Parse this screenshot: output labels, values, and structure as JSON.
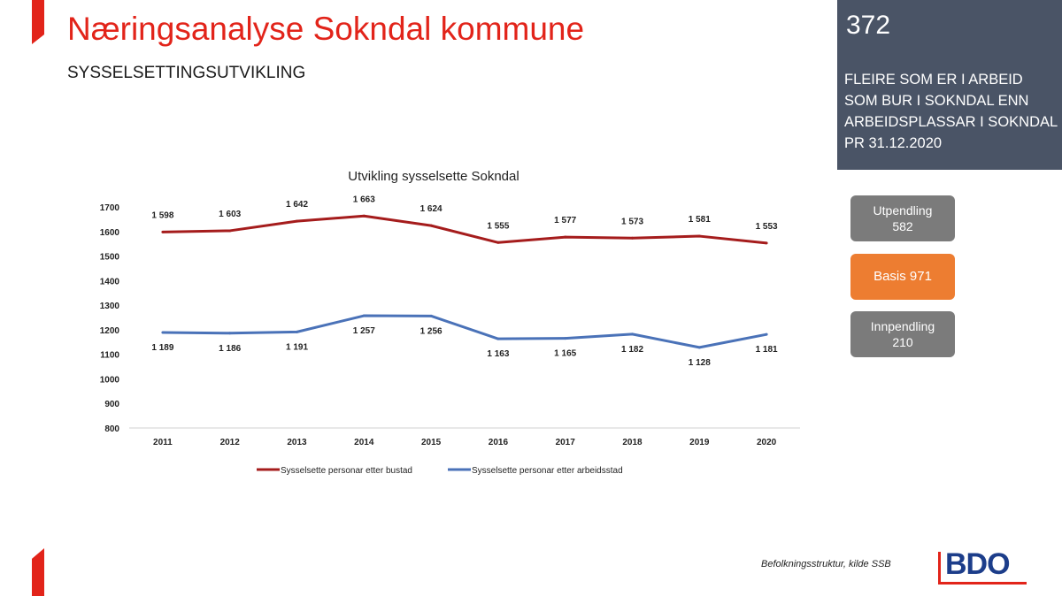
{
  "header": {
    "title": "Næringsanalyse Sokndal kommune",
    "subtitle": "SYSSELSETTINGSUTVIKLING"
  },
  "side_panel": {
    "number": "372",
    "lines": [
      "FLEIRE SOM ER I ARBEID",
      "SOM BUR I SOKNDAL ENN",
      "ARBEIDSPLASSAR I SOKNDAL",
      "PR 31.12.2020"
    ]
  },
  "boxes": {
    "utpendling": {
      "line1": "Utpendling",
      "line2": "582"
    },
    "basis": {
      "line1": "Basis 971"
    },
    "innpendling": {
      "line1": "Innpendling",
      "line2": "210"
    }
  },
  "footer": {
    "source": "Befolkningsstruktur, kilde SSB",
    "logo_text": "BDO"
  },
  "colors": {
    "accent": "#e2241a",
    "series_bustad": "#a51c1c",
    "series_arbeidsstad": "#4a72b8",
    "panel": "#4a5466",
    "orange": "#ed7d31",
    "grey": "#7b7b7b"
  },
  "chart_data": {
    "type": "line",
    "title": "Utvikling sysselsette Sokndal",
    "categories": [
      "2011",
      "2012",
      "2013",
      "2014",
      "2015",
      "2016",
      "2017",
      "2018",
      "2019",
      "2020"
    ],
    "ylim": [
      800,
      1700
    ],
    "yticks": [
      800,
      900,
      1000,
      1100,
      1200,
      1300,
      1400,
      1500,
      1600,
      1700
    ],
    "grid": false,
    "legend_position": "bottom",
    "series": [
      {
        "name": "Sysselsette personar etter bustad",
        "values": [
          1598,
          1603,
          1642,
          1663,
          1624,
          1555,
          1577,
          1573,
          1581,
          1553
        ],
        "labels": [
          "1 598",
          "1 603",
          "1 642",
          "1 663",
          "1 624",
          "1 555",
          "1 577",
          "1 573",
          "1 581",
          "1 553"
        ]
      },
      {
        "name": "Sysselsette personar etter arbeidsstad",
        "values": [
          1189,
          1186,
          1191,
          1257,
          1256,
          1163,
          1165,
          1182,
          1128,
          1181
        ],
        "labels": [
          "1 189",
          "1 186",
          "1 191",
          "1 257",
          "1 256",
          "1 163",
          "1 165",
          "1 182",
          "1 128",
          "1 181"
        ]
      }
    ]
  }
}
